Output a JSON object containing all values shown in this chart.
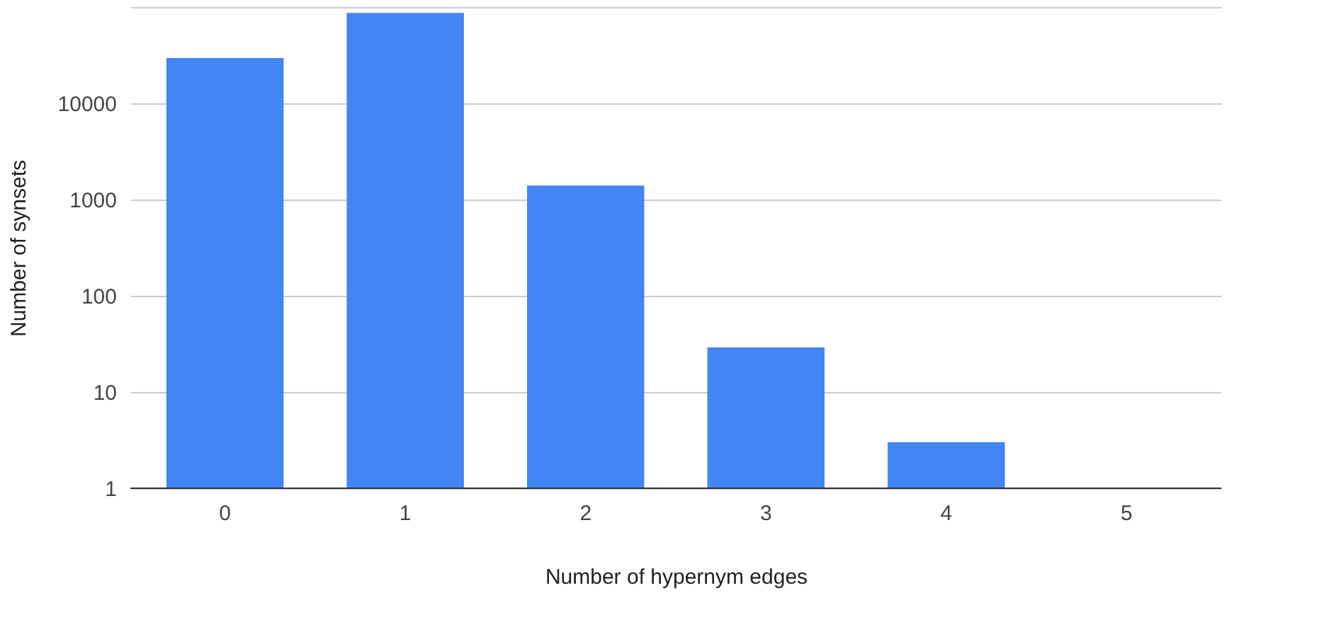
{
  "chart_data": {
    "type": "bar",
    "categories": [
      "0",
      "1",
      "2",
      "3",
      "4",
      "5"
    ],
    "values": [
      29500,
      87000,
      1400,
      29,
      3,
      1
    ],
    "color": "#4285f4",
    "xlabel": "Number of hypernym edges",
    "ylabel": "Number of synsets",
    "log": "y",
    "ylim": [
      1,
      100000
    ],
    "yticks": [
      1,
      10,
      100,
      1000,
      10000,
      {
        "value": 100000,
        "label": null
      }
    ],
    "grid": "y"
  }
}
